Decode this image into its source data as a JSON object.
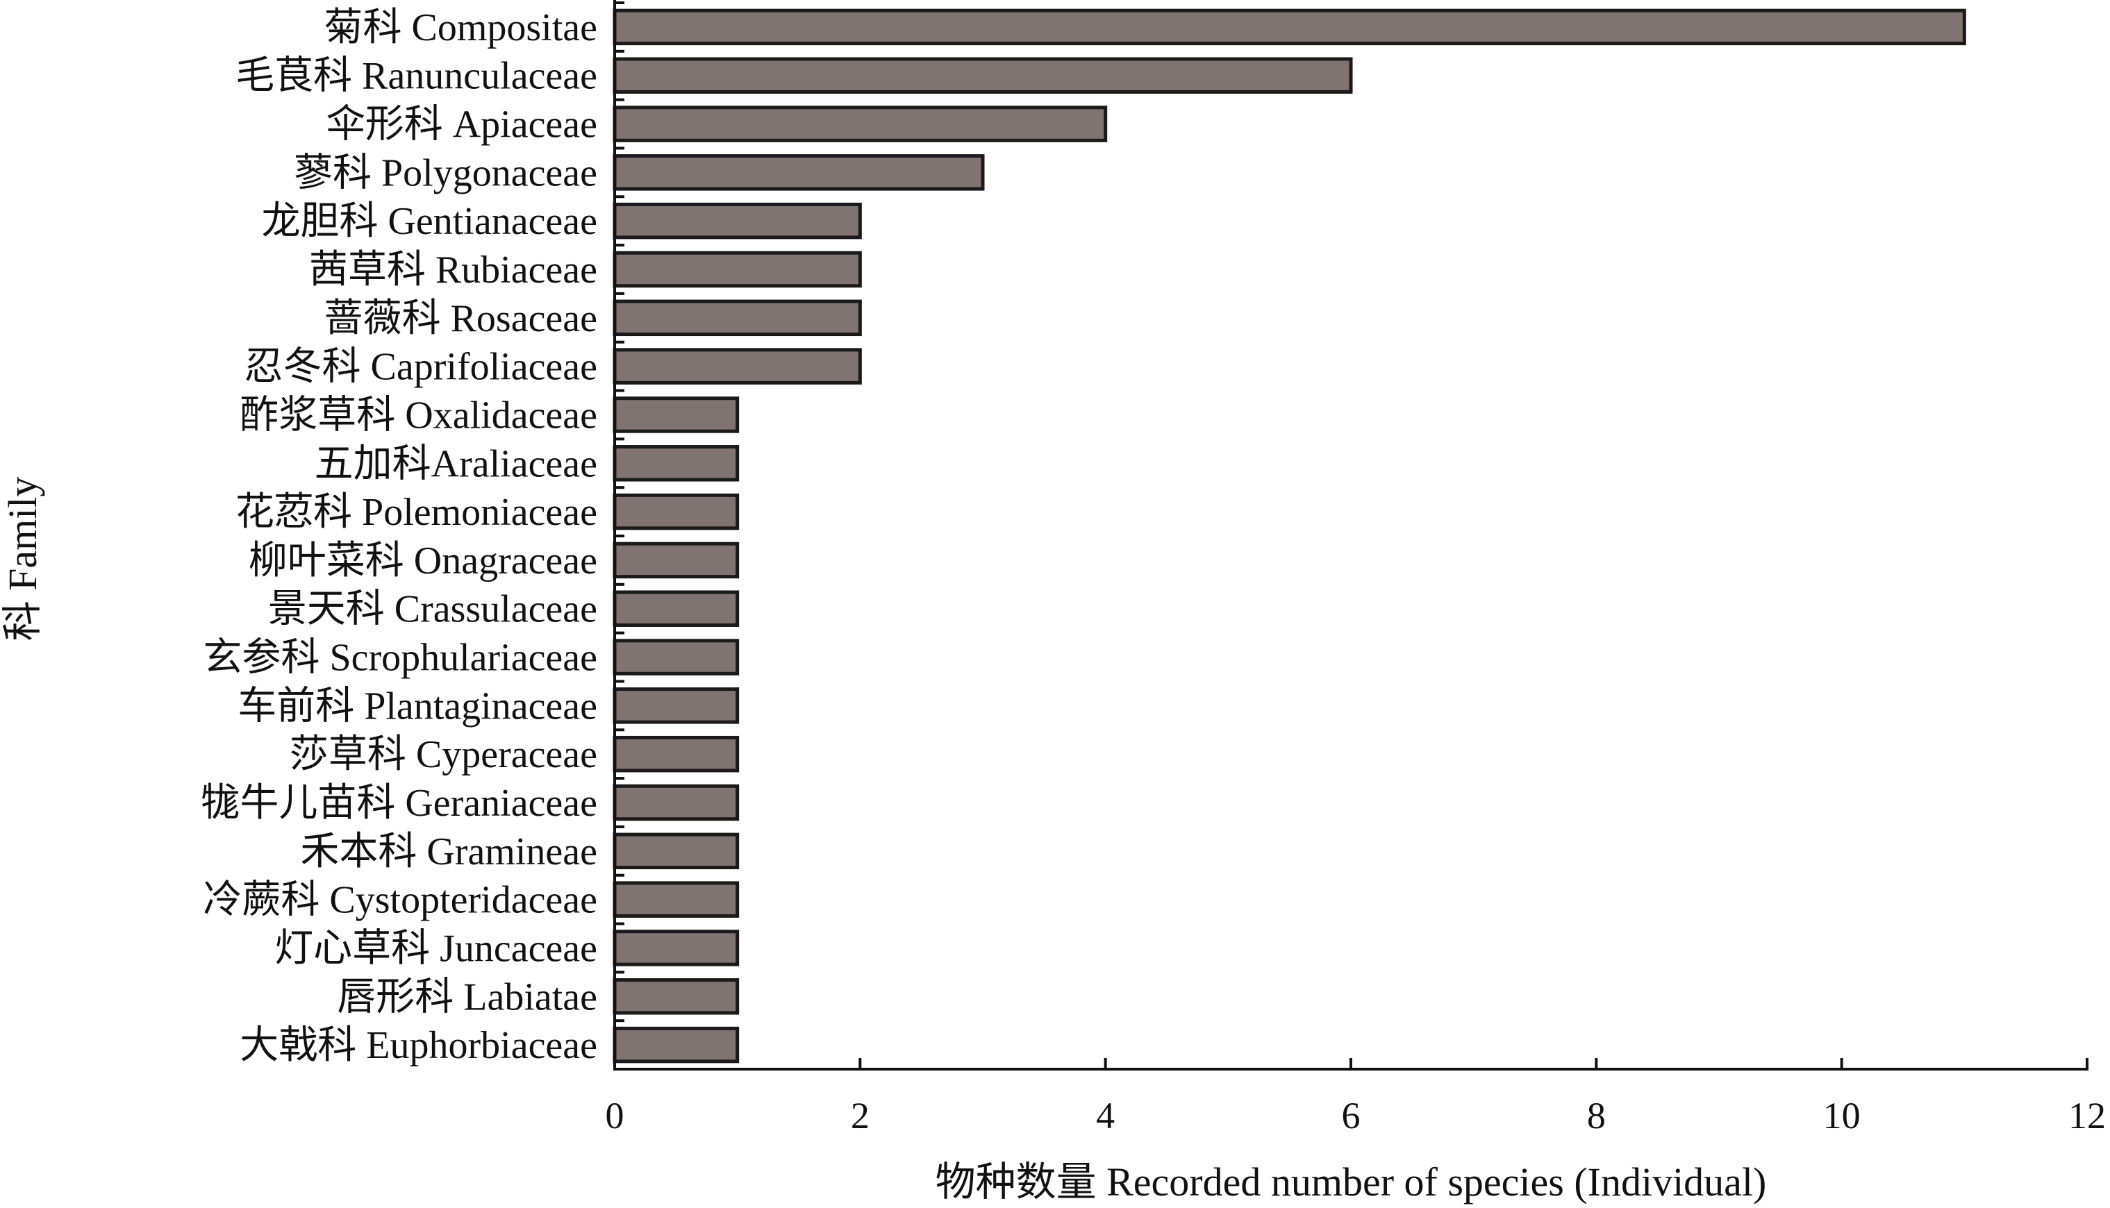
{
  "chart_data": {
    "type": "bar",
    "orientation": "horizontal",
    "title": "",
    "xlabel": "物种数量 Recorded number of species (Individual)",
    "ylabel": "科 Family",
    "xlim": [
      0,
      12
    ],
    "xticks": [
      0,
      2,
      4,
      6,
      8,
      10,
      12
    ],
    "grid": false,
    "bar_color": "#7f7472",
    "edge_color": "#1a1a1a",
    "categories": [
      "菊科 Compositae",
      "毛茛科 Ranunculaceae",
      "伞形科 Apiaceae",
      "蓼科 Polygonaceae",
      "龙胆科 Gentianaceae",
      "茜草科 Rubiaceae",
      "蔷薇科 Rosaceae",
      "忍冬科 Caprifoliaceae",
      "酢浆草科 Oxalidaceae",
      "五加科Araliaceae",
      "花荵科 Polemoniaceae",
      "柳叶菜科 Onagraceae",
      "景天科 Crassulaceae",
      "玄参科 Scrophulariaceae",
      "车前科 Plantaginaceae",
      "莎草科 Cyperaceae",
      "牻牛儿苗科 Geraniaceae",
      "禾本科 Gramineae",
      "冷蕨科 Cystopteridaceae",
      "灯心草科 Juncaceae",
      "唇形科 Labiatae",
      "大戟科 Euphorbiaceae"
    ],
    "values": [
      11,
      6,
      4,
      3,
      2,
      2,
      2,
      2,
      1,
      1,
      1,
      1,
      1,
      1,
      1,
      1,
      1,
      1,
      1,
      1,
      1,
      1
    ]
  }
}
